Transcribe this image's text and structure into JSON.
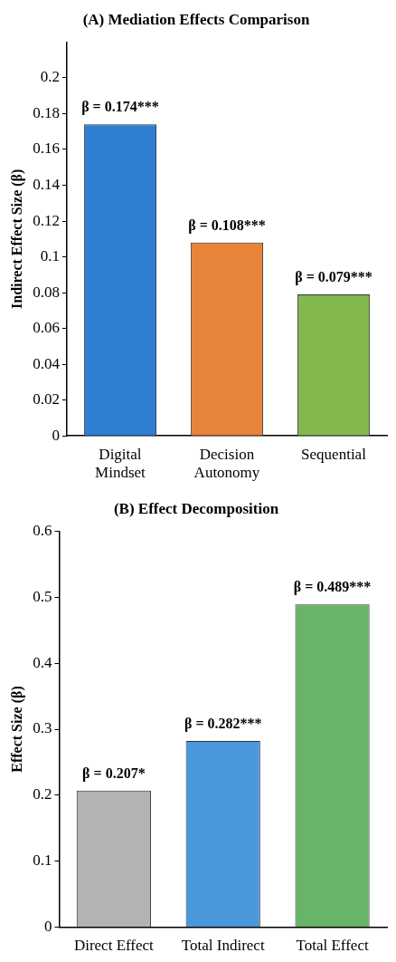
{
  "chart_data": [
    {
      "type": "bar",
      "title": "(A) Mediation Effects Comparison",
      "ylabel": "Indirect Effect Size (β)",
      "categories": [
        "Digital Mindset",
        "Decision Autonomy",
        "Sequential"
      ],
      "values": [
        0.174,
        0.108,
        0.079
      ],
      "colors": [
        "#2e7fd1",
        "#e8833a",
        "#83b84f"
      ],
      "value_labels": [
        "β = 0.174***",
        "β = 0.108***",
        "β = 0.079***"
      ],
      "ylim": [
        0,
        0.22
      ],
      "yticks": [
        0,
        0.02,
        0.04,
        0.06,
        0.08,
        0.1,
        0.12,
        0.14,
        0.16,
        0.18,
        0.2
      ],
      "grid": false,
      "legend": false
    },
    {
      "type": "bar",
      "title": "(B) Effect Decomposition",
      "ylabel": "Effect Size (β)",
      "categories": [
        "Direct Effect",
        "Total Indirect",
        "Total Effect"
      ],
      "values": [
        0.207,
        0.282,
        0.489
      ],
      "colors": [
        "#b3b3b3",
        "#4a98dc",
        "#68b468"
      ],
      "value_labels": [
        "β = 0.207*",
        "β = 0.282***",
        "β = 0.489***"
      ],
      "ylim": [
        0,
        0.6
      ],
      "yticks": [
        0,
        0.1,
        0.2,
        0.3,
        0.4,
        0.5,
        0.6
      ],
      "grid": false,
      "legend": false
    }
  ]
}
